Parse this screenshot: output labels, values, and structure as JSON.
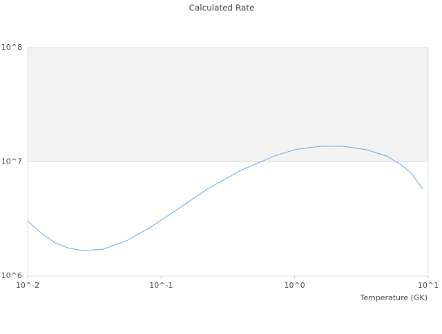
{
  "chart_data": {
    "type": "line",
    "title": "Calculated Rate",
    "x_label": "Temperature (GK)",
    "x": [
      0.01,
      0.0127,
      0.0161,
      0.0204,
      0.0259,
      0.0371,
      0.0562,
      0.0804,
      0.122,
      0.221,
      0.402,
      0.728,
      1.04,
      1.58,
      2.26,
      3.43,
      4.9,
      6.21,
      7.43,
      9.1
    ],
    "series": [
      {
        "name": "Calculated Rate",
        "color": "#5ea5e6",
        "values": [
          3040000,
          2370000,
          1950000,
          1750000,
          1670000,
          1720000,
          2060000,
          2610000,
          3600000,
          5770000,
          8500000,
          11400000,
          12900000,
          13700000,
          13700000,
          12800000,
          11200000,
          9500000,
          8060000,
          5770000
        ]
      }
    ],
    "xlog": true,
    "ylog": true,
    "xlim": [
      0.01,
      10
    ],
    "ylim": [
      1000000,
      100000000
    ],
    "xticks": [
      {
        "value": 0.01,
        "label": "10^-2"
      },
      {
        "value": 0.1,
        "label": "10^-1"
      },
      {
        "value": 1,
        "label": "10^0"
      },
      {
        "value": 10,
        "label": "10^1"
      }
    ],
    "yticks": [
      {
        "value": 1000000,
        "label": "10^6"
      },
      {
        "value": 10000000,
        "label": "10^7"
      },
      {
        "value": 100000000,
        "label": "10^8"
      }
    ],
    "grid": true,
    "band_color": "#f2f2f2"
  }
}
